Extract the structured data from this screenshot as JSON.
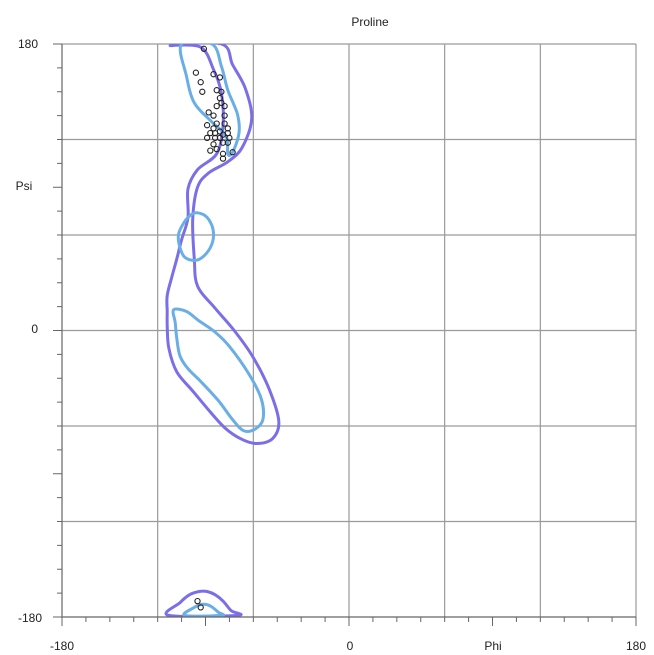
{
  "chart_data": {
    "type": "scatter",
    "title": "Proline",
    "xlabel": "Phi",
    "ylabel": "Psi",
    "xlim": [
      -180,
      180
    ],
    "ylim": [
      -180,
      180
    ],
    "x_tick_labels": [
      "-180",
      "0",
      "180"
    ],
    "y_tick_labels": [
      "180",
      "0",
      "-180"
    ],
    "grid": true,
    "colors": {
      "outer_contour": "#7b6fe8",
      "inner_contour": "#6aaee6",
      "points": "#222222",
      "grid": "#9a9a9a",
      "axis": "#666666"
    },
    "contours": [
      {
        "level": "outer",
        "points": [
          [
            -112,
            179
          ],
          [
            -93,
            178
          ],
          [
            -85,
            164
          ],
          [
            -80,
            149
          ],
          [
            -79,
            128
          ],
          [
            -83,
            111
          ],
          [
            -95,
            101
          ],
          [
            -101,
            89
          ],
          [
            -101,
            71
          ],
          [
            -105,
            57
          ],
          [
            -108,
            45
          ],
          [
            -111,
            34
          ],
          [
            -114,
            22
          ],
          [
            -114,
            12
          ],
          [
            -114,
            3
          ],
          [
            -113,
            -11
          ],
          [
            -108,
            -26
          ],
          [
            -98,
            -38
          ],
          [
            -88,
            -50
          ],
          [
            -78,
            -61
          ],
          [
            -68,
            -68
          ],
          [
            -58,
            -71
          ],
          [
            -48,
            -68
          ],
          [
            -44,
            -57
          ],
          [
            -50,
            -37
          ],
          [
            -60,
            -17
          ],
          [
            -72,
            0
          ],
          [
            -84,
            14
          ],
          [
            -95,
            28
          ],
          [
            -97,
            45
          ],
          [
            -98,
            70
          ],
          [
            -95,
            90
          ],
          [
            -88,
            99
          ],
          [
            -76,
            106
          ],
          [
            -67,
            115
          ],
          [
            -61,
            133
          ],
          [
            -65,
            152
          ],
          [
            -73,
            167
          ],
          [
            -80,
            180
          ]
        ]
      },
      {
        "level": "inner",
        "points": [
          [
            -105,
            180
          ],
          [
            -102,
            160
          ],
          [
            -97,
            143
          ],
          [
            -86,
            131
          ],
          [
            -77,
            122
          ],
          [
            -76,
            111
          ],
          [
            -73,
            112
          ],
          [
            -69,
            124
          ],
          [
            -70,
            136
          ],
          [
            -76,
            151
          ],
          [
            -80,
            166
          ],
          [
            -86,
            180
          ]
        ]
      },
      {
        "level": "inner",
        "points": [
          [
            -96,
            74
          ],
          [
            -90,
            72
          ],
          [
            -86,
            66
          ],
          [
            -85,
            59
          ],
          [
            -87,
            52
          ],
          [
            -92,
            46
          ],
          [
            -97,
            44
          ],
          [
            -103,
            46
          ],
          [
            -106,
            52
          ],
          [
            -107,
            60
          ],
          [
            -104,
            67
          ],
          [
            -100,
            72
          ]
        ]
      },
      {
        "level": "inner",
        "points": [
          [
            -110,
            13
          ],
          [
            -102,
            12
          ],
          [
            -94,
            6
          ],
          [
            -84,
            -1
          ],
          [
            -75,
            -10
          ],
          [
            -63,
            -27
          ],
          [
            -55,
            -43
          ],
          [
            -54,
            -56
          ],
          [
            -59,
            -62
          ],
          [
            -66,
            -63
          ],
          [
            -73,
            -56
          ],
          [
            -82,
            -44
          ],
          [
            -93,
            -32
          ],
          [
            -101,
            -24
          ],
          [
            -106,
            -16
          ],
          [
            -108,
            -5
          ],
          [
            -109,
            5
          ]
        ]
      },
      {
        "level": "outer",
        "points": [
          [
            -113,
            -179
          ],
          [
            -106,
            -171
          ],
          [
            -100,
            -166
          ],
          [
            -94,
            -164
          ],
          [
            -89,
            -164
          ],
          [
            -84,
            -166
          ],
          [
            -79,
            -170
          ],
          [
            -74,
            -176
          ],
          [
            -70,
            -179
          ]
        ]
      },
      {
        "level": "inner",
        "points": [
          [
            -103,
            -179
          ],
          [
            -97,
            -174
          ],
          [
            -92,
            -172
          ],
          [
            -87,
            -173
          ],
          [
            -82,
            -177
          ],
          [
            -80,
            -179
          ]
        ]
      }
    ],
    "points": [
      {
        "x": -91,
        "y": 177
      },
      {
        "x": -96,
        "y": 162
      },
      {
        "x": -93,
        "y": 156
      },
      {
        "x": -85,
        "y": 161
      },
      {
        "x": -81,
        "y": 159
      },
      {
        "x": -92,
        "y": 150
      },
      {
        "x": -83,
        "y": 151
      },
      {
        "x": -80,
        "y": 150
      },
      {
        "x": -81,
        "y": 146
      },
      {
        "x": -83,
        "y": 141
      },
      {
        "x": -80,
        "y": 143
      },
      {
        "x": -78,
        "y": 141
      },
      {
        "x": -88,
        "y": 137
      },
      {
        "x": -85,
        "y": 135
      },
      {
        "x": -78,
        "y": 135
      },
      {
        "x": -83,
        "y": 130
      },
      {
        "x": -78,
        "y": 130
      },
      {
        "x": -85,
        "y": 127
      },
      {
        "x": -89,
        "y": 129
      },
      {
        "x": -76,
        "y": 127
      },
      {
        "x": -87,
        "y": 124
      },
      {
        "x": -84,
        "y": 124
      },
      {
        "x": -81,
        "y": 125
      },
      {
        "x": -79,
        "y": 123
      },
      {
        "x": -76,
        "y": 124
      },
      {
        "x": -89,
        "y": 121
      },
      {
        "x": -84,
        "y": 121
      },
      {
        "x": -81,
        "y": 121
      },
      {
        "x": -75,
        "y": 121
      },
      {
        "x": -85,
        "y": 117
      },
      {
        "x": -79,
        "y": 118
      },
      {
        "x": -76,
        "y": 118
      },
      {
        "x": -87,
        "y": 113
      },
      {
        "x": -83,
        "y": 114
      },
      {
        "x": -79,
        "y": 111
      },
      {
        "x": -73,
        "y": 112
      },
      {
        "x": -79,
        "y": 108
      },
      {
        "x": -95,
        "y": -170
      },
      {
        "x": -93,
        "y": -174
      }
    ]
  }
}
